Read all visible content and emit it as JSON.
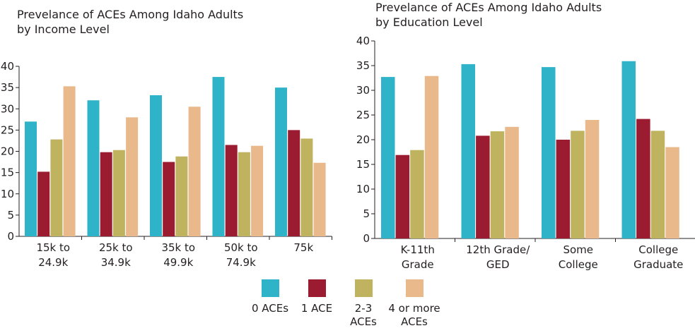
{
  "colors": {
    "0 ACEs": "#2fb3c8",
    "1 ACE": "#9b1b30",
    "2-3 ACEs": "#bfb35f",
    "4 or more ACEs": "#e9b98b"
  },
  "legend": [
    "0 ACEs",
    "1 ACE",
    "2-3\nACEs",
    "4 or more\nACEs"
  ],
  "chart_data": [
    {
      "type": "bar",
      "title": "Prevelance of ACEs Among Idaho Adults\nby Income Level",
      "categories": [
        "15k to\n24.9k",
        "25k to\n34.9k",
        "35k to\n49.9k",
        "50k to\n74.9k",
        "75k"
      ],
      "ylim": [
        0,
        40
      ],
      "yticks": [
        0,
        5,
        10,
        15,
        20,
        25,
        30,
        35,
        40
      ],
      "grid": false,
      "legend_position": "bottom",
      "series": [
        {
          "name": "0 ACEs",
          "values": [
            27,
            32,
            33.2,
            37.5,
            35
          ]
        },
        {
          "name": "1 ACE",
          "values": [
            15.2,
            19.8,
            17.5,
            21.5,
            25
          ]
        },
        {
          "name": "2-3 ACEs",
          "values": [
            22.8,
            20.3,
            18.8,
            19.8,
            23
          ]
        },
        {
          "name": "4 or more ACEs",
          "values": [
            35.3,
            28,
            30.5,
            21.3,
            17.3
          ]
        }
      ]
    },
    {
      "type": "bar",
      "title": "Prevelance of ACEs Among Idaho Adults\nby Education Level",
      "categories": [
        "K-11th\nGrade",
        "12th Grade/\nGED",
        "Some\nCollege",
        "College\nGraduate"
      ],
      "ylim": [
        0,
        40
      ],
      "yticks": [
        0,
        5,
        10,
        15,
        20,
        25,
        30,
        35,
        40
      ],
      "grid": false,
      "legend_position": "bottom",
      "series": [
        {
          "name": "0 ACEs",
          "values": [
            32.7,
            35.3,
            34.7,
            35.9
          ]
        },
        {
          "name": "1 ACE",
          "values": [
            16.9,
            20.8,
            20,
            24.2
          ]
        },
        {
          "name": "2-3 ACEs",
          "values": [
            17.9,
            21.7,
            21.8,
            21.8
          ]
        },
        {
          "name": "4 or more ACEs",
          "values": [
            32.9,
            22.6,
            24,
            18.5
          ]
        }
      ]
    }
  ]
}
